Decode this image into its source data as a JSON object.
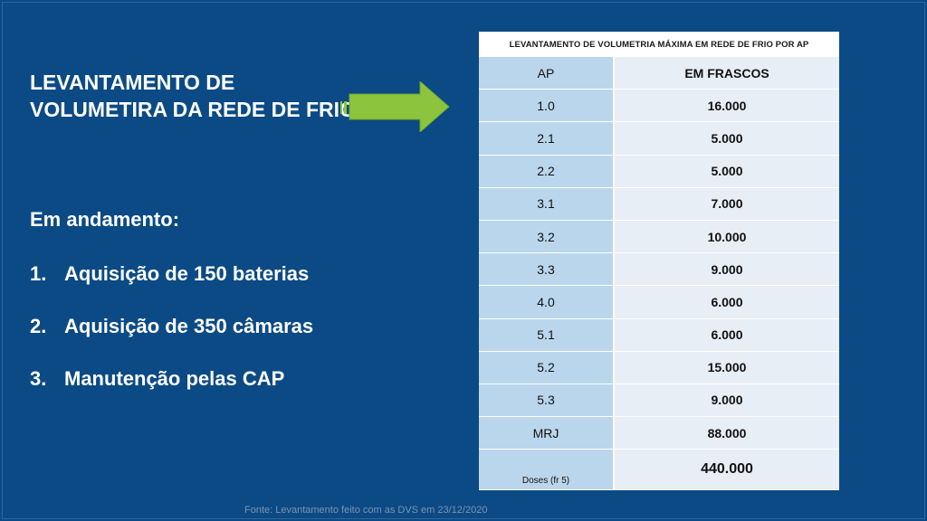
{
  "title": "LEVANTAMENTO DE VOLUMETIRA  DA REDE DE FRIO",
  "status_heading": "Em andamento:",
  "tasks": [
    {
      "num": "1.",
      "text": "Aquisição de 150 baterias"
    },
    {
      "num": "2.",
      "text": "Aquisição de 350 câmaras"
    },
    {
      "num": "3.",
      "text": "Manutenção pelas CAP"
    }
  ],
  "table": {
    "caption": "LEVANTAMENTO DE VOLUMETRIA MÁXIMA EM REDE DE FRIO POR AP",
    "header": {
      "ap": "AP",
      "value": "EM FRASCOS"
    },
    "rows": [
      {
        "ap": "1.0",
        "value": "16.000"
      },
      {
        "ap": "2.1",
        "value": "5.000"
      },
      {
        "ap": "2.2",
        "value": "5.000"
      },
      {
        "ap": "3.1",
        "value": "7.000"
      },
      {
        "ap": "3.2",
        "value": "10.000"
      },
      {
        "ap": "3.3",
        "value": "9.000"
      },
      {
        "ap": "4.0",
        "value": "6.000"
      },
      {
        "ap": "5.1",
        "value": "6.000"
      },
      {
        "ap": "5.2",
        "value": "15.000"
      },
      {
        "ap": "5.3",
        "value": "9.000"
      },
      {
        "ap": "MRJ",
        "value": "88.000"
      },
      {
        "ap": "Doses (fr 5)",
        "value": "440.000"
      }
    ]
  },
  "source": "Fonte: Levantamento feito com as DVS em 23/12/2020",
  "colors": {
    "background": "#0b4a85",
    "arrow": "#8cc43e",
    "ap_column": "#bad6ec",
    "value_column": "#e8eef6"
  },
  "icons": {
    "arrow": "arrow-right-icon"
  }
}
